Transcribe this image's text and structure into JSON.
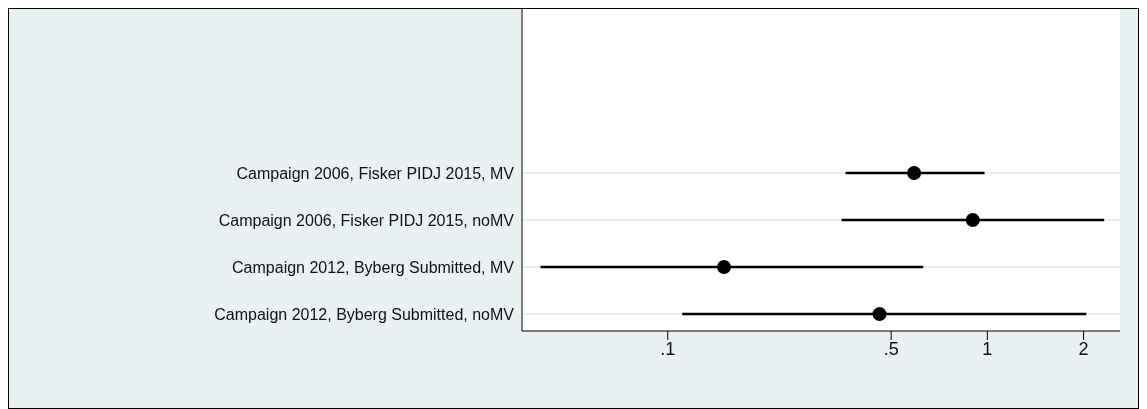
{
  "chart_data": {
    "type": "scatter",
    "orientation": "horizontal",
    "categories": [
      "Campaign 2006, Fisker PIDJ 2015, MV",
      "Campaign 2006, Fisker PIDJ 2015, noMV",
      "Campaign 2012, Byberg Submitted, MV",
      "Campaign 2012, Byberg Submitted, noMV"
    ],
    "values": [
      0.59,
      0.9,
      0.15,
      0.46
    ],
    "errors": [
      [
        0.36,
        0.98
      ],
      [
        0.35,
        2.32
      ],
      [
        0.04,
        0.63
      ],
      [
        0.111,
        2.04
      ]
    ],
    "color": "#000000",
    "xlim": [
      0.035,
      2.6
    ],
    "xticks": [
      {
        "value": 0.1,
        "label": ".1"
      },
      {
        "value": 0.5,
        "label": ".5"
      },
      1,
      2
    ],
    "log": "x",
    "grid": "y",
    "marker": "circle"
  }
}
